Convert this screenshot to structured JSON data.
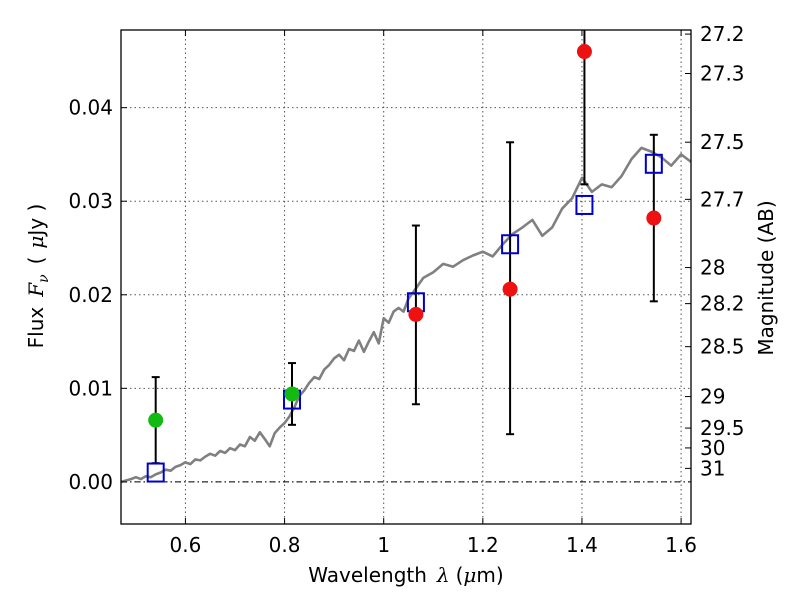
{
  "chart_data": {
    "type": "scatter",
    "title": "",
    "xlabel": "Wavelength",
    "xlabel_symbol": "λ",
    "xlabel_unit_prefix": "(",
    "xlabel_unit_mu": "μ",
    "xlabel_unit_suffix": "m)",
    "ylabel": "Flux",
    "ylabel_symbol": "F",
    "ylabel_subscript": "ν",
    "ylabel_unit_prefix": "(",
    "ylabel_unit_mu": "μ",
    "ylabel_unit_suffix": "Jy )",
    "y2label": "Magnitude (AB)",
    "xlim": [
      0.47,
      1.62
    ],
    "ylim": [
      -0.0045,
      0.0483
    ],
    "grid": true,
    "xticks": [
      0.6,
      0.8,
      1.0,
      1.2,
      1.4,
      1.6
    ],
    "xtick_labels": [
      "0.6",
      "0.8",
      "1",
      "1.2",
      "1.4",
      "1.6"
    ],
    "yticks": [
      0.0,
      0.01,
      0.02,
      0.03,
      0.04
    ],
    "ytick_labels": [
      "0.00",
      "0.01",
      "0.02",
      "0.03",
      "0.04"
    ],
    "y2ticks": [
      {
        "label": "27.2",
        "mag": 27.2
      },
      {
        "label": "27.3",
        "mag": 27.3
      },
      {
        "label": "27.5",
        "mag": 27.5
      },
      {
        "label": "27.7",
        "mag": 27.7
      },
      {
        "label": "28",
        "mag": 28.0
      },
      {
        "label": "28.2",
        "mag": 28.2
      },
      {
        "label": "28.5",
        "mag": 28.5
      },
      {
        "label": "29",
        "mag": 29.0
      },
      {
        "label": "29.5",
        "mag": 29.5
      },
      {
        "label": "30",
        "mag": 30.0
      },
      {
        "label": "31",
        "mag": 31.0
      }
    ],
    "colors": {
      "model": "#808080",
      "model_points": "#0000cc",
      "observed": "#ee1111",
      "observed_green": "#11bb11",
      "errorbar": "#000000"
    },
    "series": [
      {
        "name": "model spectrum",
        "style": "line",
        "x": [
          0.47,
          0.49,
          0.5,
          0.51,
          0.52,
          0.53,
          0.54,
          0.55,
          0.56,
          0.57,
          0.58,
          0.59,
          0.6,
          0.61,
          0.62,
          0.63,
          0.64,
          0.65,
          0.66,
          0.67,
          0.68,
          0.69,
          0.7,
          0.71,
          0.72,
          0.73,
          0.74,
          0.75,
          0.76,
          0.77,
          0.78,
          0.79,
          0.8,
          0.81,
          0.82,
          0.83,
          0.84,
          0.85,
          0.86,
          0.87,
          0.88,
          0.89,
          0.9,
          0.91,
          0.92,
          0.93,
          0.94,
          0.95,
          0.96,
          0.97,
          0.98,
          0.99,
          1.0,
          1.01,
          1.02,
          1.03,
          1.04,
          1.05,
          1.06,
          1.08,
          1.1,
          1.12,
          1.14,
          1.16,
          1.18,
          1.2,
          1.22,
          1.24,
          1.26,
          1.28,
          1.3,
          1.32,
          1.34,
          1.36,
          1.38,
          1.4,
          1.42,
          1.44,
          1.46,
          1.48,
          1.5,
          1.52,
          1.54,
          1.56,
          1.58,
          1.6,
          1.62
        ],
        "values": [
          0.0,
          0.0003,
          0.0005,
          0.0003,
          0.0006,
          0.0005,
          0.0008,
          0.001,
          0.0013,
          0.0012,
          0.0016,
          0.0018,
          0.0021,
          0.0019,
          0.0024,
          0.0023,
          0.0027,
          0.003,
          0.0028,
          0.0033,
          0.0031,
          0.0036,
          0.0034,
          0.004,
          0.0038,
          0.0048,
          0.0044,
          0.0053,
          0.0046,
          0.0038,
          0.0052,
          0.0058,
          0.0063,
          0.007,
          0.008,
          0.0092,
          0.0098,
          0.0106,
          0.0112,
          0.011,
          0.012,
          0.0125,
          0.0132,
          0.0136,
          0.013,
          0.0142,
          0.014,
          0.0151,
          0.0139,
          0.015,
          0.016,
          0.0148,
          0.0175,
          0.017,
          0.0182,
          0.0186,
          0.0182,
          0.0196,
          0.0203,
          0.0218,
          0.0224,
          0.0233,
          0.023,
          0.0237,
          0.0242,
          0.0246,
          0.0241,
          0.0254,
          0.0265,
          0.0272,
          0.028,
          0.0263,
          0.0272,
          0.0292,
          0.0303,
          0.0325,
          0.031,
          0.0318,
          0.0315,
          0.0327,
          0.0345,
          0.0357,
          0.0353,
          0.0347,
          0.0338,
          0.035,
          0.0342
        ]
      },
      {
        "name": "model photometry",
        "style": "open-square",
        "x": [
          0.54,
          0.815,
          1.065,
          1.255,
          1.405,
          1.545
        ],
        "values": [
          0.001,
          0.0088,
          0.0192,
          0.0254,
          0.0296,
          0.034
        ]
      },
      {
        "name": "observed flux",
        "style": "filled-circle",
        "x": [
          0.54,
          0.815,
          1.065,
          1.255,
          1.405,
          1.545
        ],
        "values": [
          0.0066,
          0.0094,
          0.0179,
          0.0206,
          0.046,
          0.0282
        ],
        "colors": [
          "green",
          "green",
          "red",
          "red",
          "red",
          "red"
        ],
        "err_low": [
          0.002,
          0.0061,
          0.0083,
          0.0051,
          0.0318,
          0.0193
        ],
        "err_high": [
          0.0112,
          0.0127,
          0.0274,
          0.0363,
          0.0483,
          0.0371
        ]
      }
    ]
  }
}
